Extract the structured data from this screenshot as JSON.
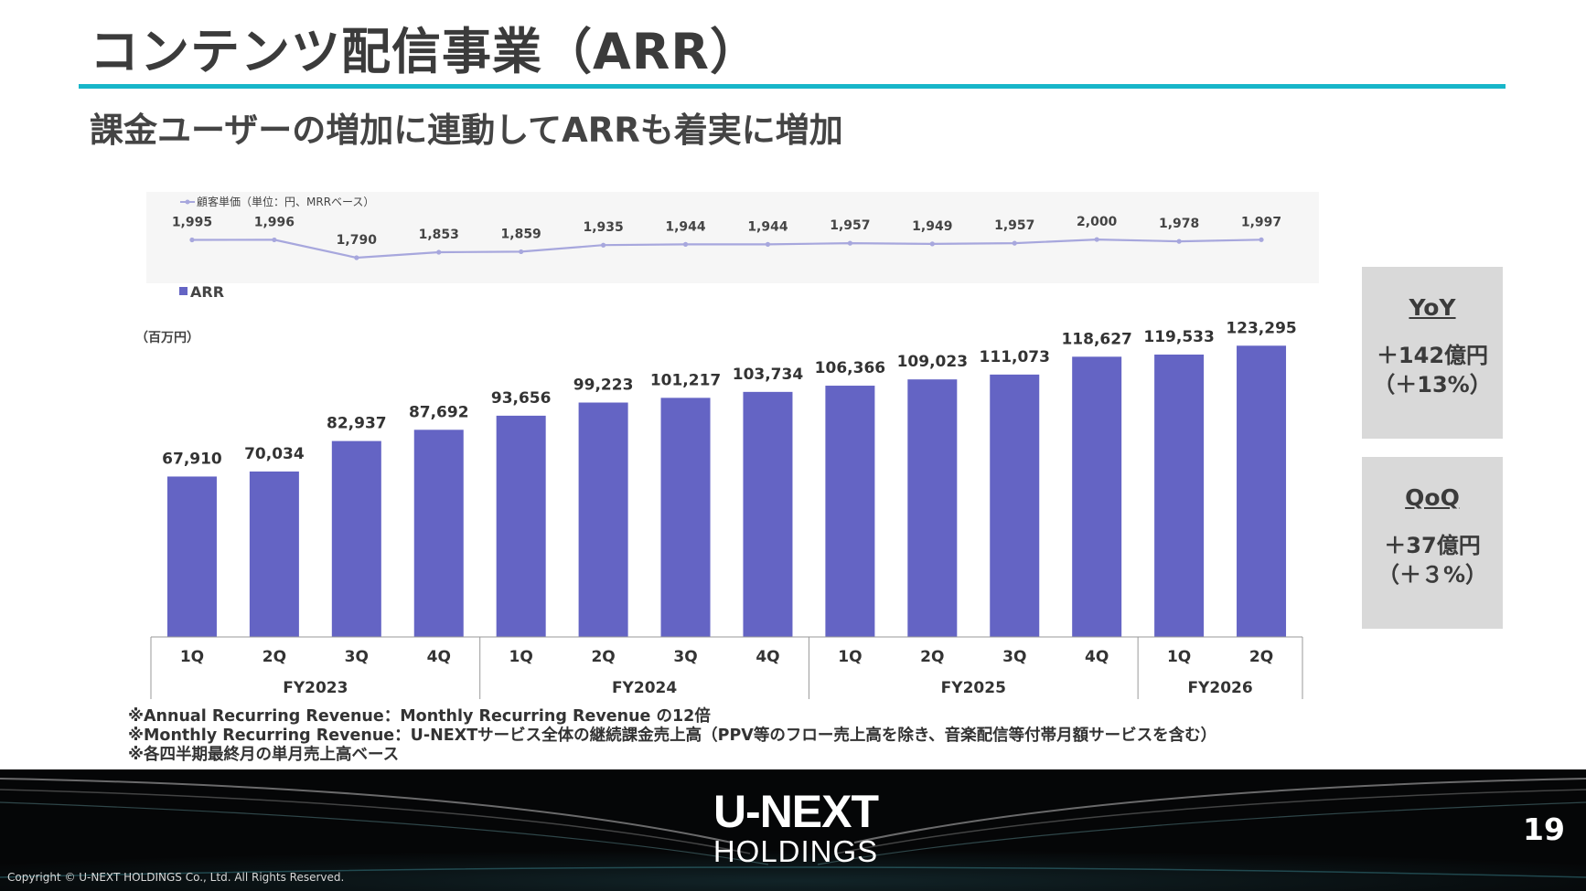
{
  "slide": {
    "title": "コンテンツ配信事業（ARR）",
    "subtitle": "課金ユーザーの増加に連動してARRも着実に増加",
    "accent_color": "#17b6c9"
  },
  "chart_data": {
    "type": "bar",
    "bar_color": "#6464c4",
    "line_color": "#a7a7dd",
    "categories": [
      "1Q",
      "2Q",
      "3Q",
      "4Q",
      "1Q",
      "2Q",
      "3Q",
      "4Q",
      "1Q",
      "2Q",
      "3Q",
      "4Q",
      "1Q",
      "2Q"
    ],
    "fiscal_years": [
      {
        "label": "FY2023",
        "count": 4
      },
      {
        "label": "FY2024",
        "count": 4
      },
      {
        "label": "FY2025",
        "count": 4
      },
      {
        "label": "FY2026",
        "count": 2
      }
    ],
    "series": [
      {
        "name": "ARR",
        "kind": "bar",
        "values": [
          67910,
          70034,
          82937,
          87692,
          93656,
          99223,
          101217,
          103734,
          106366,
          109023,
          111073,
          118627,
          119533,
          123295
        ]
      },
      {
        "name": "顧客単価（単位：円、MRRベース）",
        "kind": "line",
        "values": [
          1995,
          1996,
          1790,
          1853,
          1859,
          1935,
          1944,
          1944,
          1957,
          1949,
          1957,
          2000,
          1978,
          1997
        ]
      }
    ],
    "value_labels": {
      "arr": [
        "67,910",
        "70,034",
        "82,937",
        "87,692",
        "93,656",
        "99,223",
        "101,217",
        "103,734",
        "106,366",
        "109,023",
        "111,073",
        "118,627",
        "119,533",
        "123,295"
      ],
      "unit_price": [
        "1,995",
        "1,996",
        "1,790",
        "1,853",
        "1,859",
        "1,935",
        "1,944",
        "1,944",
        "1,957",
        "1,949",
        "1,957",
        "2,000",
        "1,978",
        "1,997"
      ]
    },
    "unit_label": "（百万円）",
    "legend": [
      "顧客単価（単位：円、MRRベース）",
      "ARR"
    ],
    "legend_placement": "top-left",
    "grid": false,
    "ylim": [
      0,
      130000
    ]
  },
  "kpi": {
    "yoy": {
      "head": "YoY",
      "line1": "＋142億円",
      "line2": "（＋13%）"
    },
    "qoq": {
      "head": "QoQ",
      "line1": "＋37億円",
      "line2": "（＋３%）"
    }
  },
  "notes": [
    "※Annual Recurring Revenue：Monthly Recurring Revenue の12倍",
    "※Monthly Recurring Revenue：U-NEXTサービス全体の継続課金売上高（PPV等のフロー売上高を除き、音楽配信等付帯月額サービスを含む）",
    "※各四半期最終月の単月売上高ベース"
  ],
  "footer": {
    "logo_main": "U-NEXT",
    "logo_sub": "HOLDINGS",
    "page_number": "19",
    "copyright": "Copyright © U-NEXT HOLDINGS Co., Ltd. All Rights Reserved."
  }
}
